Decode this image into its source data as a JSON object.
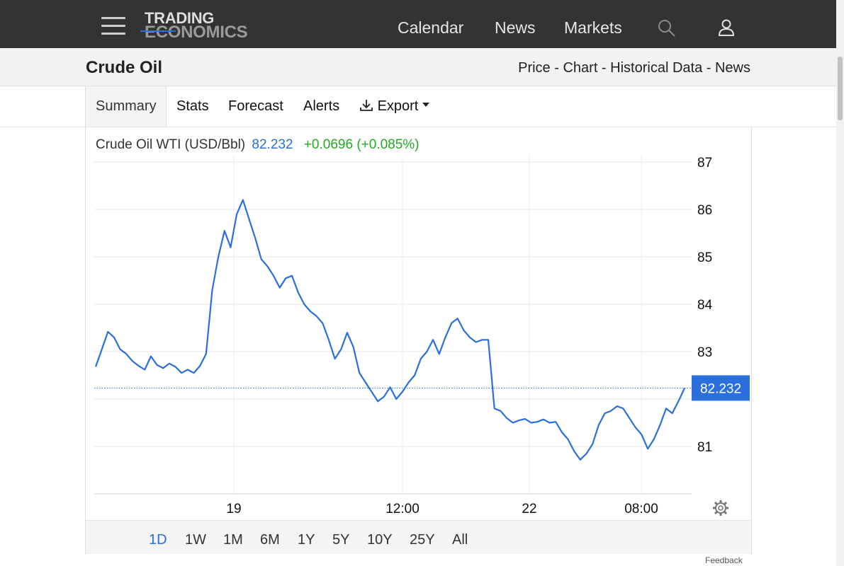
{
  "header": {
    "logo_line1": "TRADING",
    "logo_line2": "ECONOMICS",
    "nav": [
      "Calendar",
      "News",
      "Markets"
    ]
  },
  "page": {
    "title": "Crude Oil",
    "links": [
      "Price",
      "Chart",
      "Historical Data",
      "News"
    ],
    "link_separator": " - "
  },
  "tabs": [
    "Summary",
    "Stats",
    "Forecast",
    "Alerts",
    "Export"
  ],
  "quote": {
    "name": "Crude Oil WTI (USD/Bbl)",
    "price": "82.232",
    "change": "+0.0696 (+0.085%)"
  },
  "ranges": [
    "1D",
    "1W",
    "1M",
    "6M",
    "1Y",
    "5Y",
    "10Y",
    "25Y",
    "All"
  ],
  "active_range": "1D",
  "footer": {
    "feedback": "Feedback"
  },
  "colors": {
    "accent": "#2a6fdb",
    "positive": "#23a823",
    "topbar": "#333333"
  },
  "chart_data": {
    "type": "line",
    "series": [
      {
        "values": [
          82.68,
          83.05,
          83.42,
          83.3,
          83.05,
          82.95,
          82.8,
          82.7,
          82.62,
          82.9,
          82.72,
          82.65,
          82.75,
          82.68,
          82.55,
          82.62,
          82.55,
          82.7,
          82.95,
          84.3,
          85.0,
          85.55,
          85.2,
          85.9,
          86.2,
          85.8,
          85.4,
          84.95,
          84.8,
          84.6,
          84.35,
          84.55,
          84.6,
          84.25,
          84.0,
          83.85,
          83.75,
          83.6,
          83.25,
          82.85,
          83.05,
          83.4,
          83.1,
          82.55,
          82.35,
          82.15,
          81.95,
          82.05,
          82.25,
          82.0,
          82.15,
          82.35,
          82.5,
          82.85,
          83.0,
          83.25,
          82.95,
          83.3,
          83.6,
          83.7,
          83.45,
          83.3,
          83.2,
          83.25,
          83.25,
          81.8,
          81.75,
          81.6,
          81.5,
          81.55,
          81.58,
          81.5,
          81.52,
          81.57,
          81.5,
          81.52,
          81.3,
          81.15,
          80.9,
          80.72,
          80.85,
          81.05,
          81.45,
          81.7,
          81.75,
          81.85,
          81.8,
          81.6,
          81.4,
          81.25,
          80.95,
          81.15,
          81.45,
          81.8,
          81.7,
          81.95,
          82.232
        ],
        "color": "#2a6fdb"
      }
    ],
    "x_tick_labels": [
      "19",
      "12:00",
      "22",
      "08:00"
    ],
    "y_ticks": [
      81,
      82,
      83,
      84,
      85,
      86,
      87
    ],
    "y_tick_labels": [
      "81",
      "",
      "83",
      "84",
      "85",
      "86",
      "87"
    ],
    "ylim": [
      80.0,
      87.0
    ],
    "last_value_label": "82.232",
    "grid": true
  }
}
